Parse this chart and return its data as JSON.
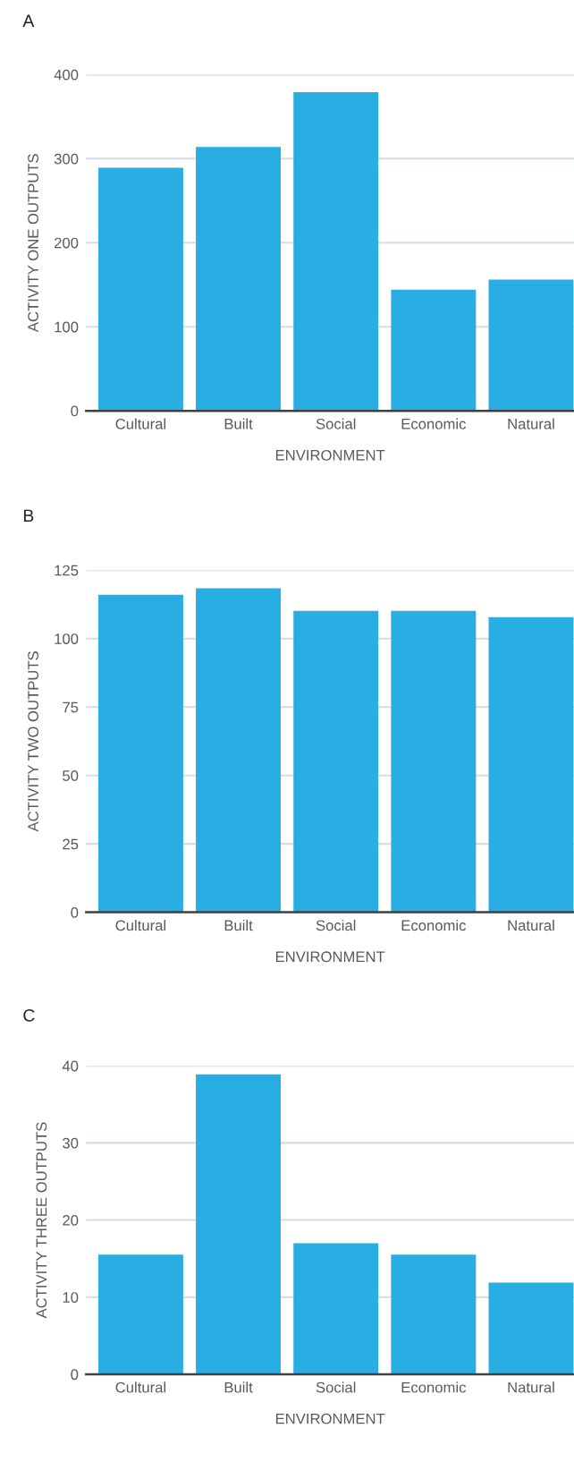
{
  "chart_data": [
    {
      "type": "bar",
      "title": "A",
      "categories": [
        "Cultural",
        "Built",
        "Social",
        "Economic",
        "Natural"
      ],
      "values": [
        289,
        314,
        379,
        144,
        156
      ],
      "color": "#29aee3",
      "xlabel": "ENVIRONMENT",
      "ylabel": "ACTIVITY ONE OUTPUTS",
      "ylim": [
        0,
        400
      ],
      "yticks": [
        0,
        100,
        200,
        300,
        400
      ],
      "grid": "y"
    },
    {
      "type": "bar",
      "title": "B",
      "categories": [
        "Cultural",
        "Built",
        "Social",
        "Economic",
        "Natural"
      ],
      "values": [
        116,
        118.4,
        110.1,
        110.1,
        107.8
      ],
      "color": "#29aee3",
      "xlabel": "ENVIRONMENT",
      "ylabel": "ACTIVITY TWO OUTPUTS",
      "ylim": [
        0,
        125
      ],
      "yticks": [
        0,
        25,
        50,
        75,
        100,
        125
      ],
      "grid": "y"
    },
    {
      "type": "bar",
      "title": "C",
      "categories": [
        "Cultural",
        "Built",
        "Social",
        "Economic",
        "Natural"
      ],
      "values": [
        15.5,
        38.9,
        17.0,
        15.5,
        11.9
      ],
      "color": "#29aee3",
      "xlabel": "ENVIRONMENT",
      "ylabel": "ACTIVITY THREE OUTPUTS",
      "ylim": [
        0,
        40
      ],
      "yticks": [
        0,
        10,
        20,
        30,
        40
      ],
      "grid": "y"
    }
  ]
}
